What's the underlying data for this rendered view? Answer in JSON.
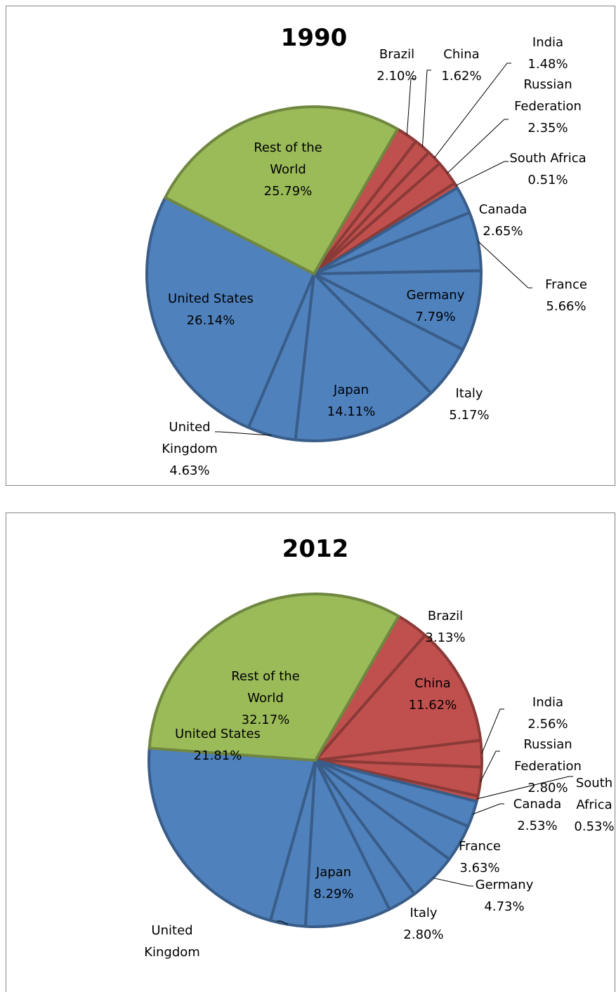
{
  "chart_data": [
    {
      "type": "pie",
      "title": "1990",
      "categories": [
        "Brazil",
        "China",
        "India",
        "Russian Federation",
        "South Africa",
        "Canada",
        "France",
        "Germany",
        "Italy",
        "Japan",
        "United Kingdom",
        "United States",
        "Rest of the World"
      ],
      "values": [
        2.1,
        1.62,
        1.48,
        2.35,
        0.51,
        2.65,
        5.66,
        7.79,
        5.17,
        14.11,
        4.63,
        26.14,
        25.79
      ],
      "value_labels": [
        "2.10%",
        "1.62%",
        "1.48%",
        "2.35%",
        "0.51%",
        "2.65%",
        "5.66%",
        "7.79%",
        "5.17%",
        "14.11%",
        "4.63%",
        "26.14%",
        "25.79%"
      ],
      "colors": [
        "#c0504d",
        "#c0504d",
        "#c0504d",
        "#c0504d",
        "#c0504d",
        "#4f81bd",
        "#4f81bd",
        "#4f81bd",
        "#4f81bd",
        "#4f81bd",
        "#4f81bd",
        "#4f81bd",
        "#9bbb59"
      ]
    },
    {
      "type": "pie",
      "title": "2012",
      "categories": [
        "Brazil",
        "China",
        "India",
        "Russian Federation",
        "South Africa",
        "Canada",
        "France",
        "Germany",
        "Italy",
        "Japan",
        "United Kingdom",
        "United States",
        "Rest of the World"
      ],
      "values": [
        3.13,
        11.62,
        2.56,
        2.8,
        0.53,
        2.53,
        3.63,
        4.73,
        2.8,
        8.29,
        3.4,
        21.81,
        32.17
      ],
      "value_labels": [
        "3.13%",
        "11.62%",
        "2.56%",
        "2.80%",
        "0.53%",
        "2.53%",
        "3.63%",
        "4.73%",
        "2.80%",
        "8.29%",
        null,
        "21.81%",
        "32.17%"
      ],
      "colors": [
        "#c0504d",
        "#c0504d",
        "#c0504d",
        "#c0504d",
        "#c0504d",
        "#4f81bd",
        "#4f81bd",
        "#4f81bd",
        "#4f81bd",
        "#4f81bd",
        "#4f81bd",
        "#4f81bd",
        "#9bbb59"
      ]
    }
  ]
}
